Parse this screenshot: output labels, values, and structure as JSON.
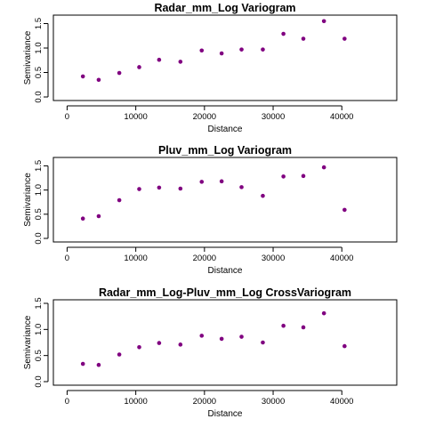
{
  "chart_data": [
    {
      "type": "scatter",
      "title": "Radar_mm_Log Variogram",
      "xlabel": "Distance",
      "ylabel": "Semivariance",
      "xlim": [
        -2000,
        48000
      ],
      "ylim": [
        0,
        1.6
      ],
      "xticks": [
        "0",
        "10000",
        "20000",
        "30000",
        "40000"
      ],
      "yticks": [
        "0.0",
        "0.5",
        "1.0",
        "1.5"
      ],
      "grid": false,
      "point_color": "#800080",
      "x": [
        2300,
        4600,
        7600,
        10500,
        13400,
        16500,
        19600,
        22500,
        25400,
        28500,
        31500,
        34400,
        37400,
        40400
      ],
      "y": [
        0.42,
        0.35,
        0.49,
        0.61,
        0.76,
        0.72,
        0.95,
        0.89,
        0.97,
        0.97,
        1.29,
        1.19,
        1.55,
        1.19
      ]
    },
    {
      "type": "scatter",
      "title": "Pluv_mm_Log Variogram",
      "xlabel": "Distance",
      "ylabel": "Semivariance",
      "xlim": [
        -2000,
        48000
      ],
      "ylim": [
        0,
        1.6
      ],
      "xticks": [
        "0",
        "10000",
        "20000",
        "30000",
        "40000"
      ],
      "yticks": [
        "0.0",
        "0.5",
        "1.0",
        "1.5"
      ],
      "grid": false,
      "point_color": "#800080",
      "x": [
        2300,
        4600,
        7600,
        10500,
        13400,
        16500,
        19600,
        22500,
        25400,
        28500,
        31500,
        34400,
        37400,
        40400
      ],
      "y": [
        0.41,
        0.46,
        0.79,
        1.02,
        1.05,
        1.03,
        1.17,
        1.18,
        1.06,
        0.88,
        1.28,
        1.29,
        1.47,
        0.59
      ]
    },
    {
      "type": "scatter",
      "title": "Radar_mm_Log-Pluv_mm_Log CrossVariogram",
      "xlabel": "Distance",
      "ylabel": "Semivariance",
      "xlim": [
        -2000,
        48000
      ],
      "ylim": [
        0,
        1.5
      ],
      "xticks": [
        "0",
        "10000",
        "20000",
        "30000",
        "40000"
      ],
      "yticks": [
        "0.0",
        "0.5",
        "1.0",
        "1.5"
      ],
      "grid": false,
      "point_color": "#800080",
      "x": [
        2300,
        4600,
        7600,
        10500,
        13400,
        16500,
        19600,
        22500,
        25400,
        28500,
        31500,
        34400,
        37400,
        40400
      ],
      "y": [
        0.34,
        0.32,
        0.52,
        0.66,
        0.74,
        0.71,
        0.88,
        0.82,
        0.86,
        0.75,
        1.07,
        1.04,
        1.31,
        0.68
      ]
    }
  ]
}
